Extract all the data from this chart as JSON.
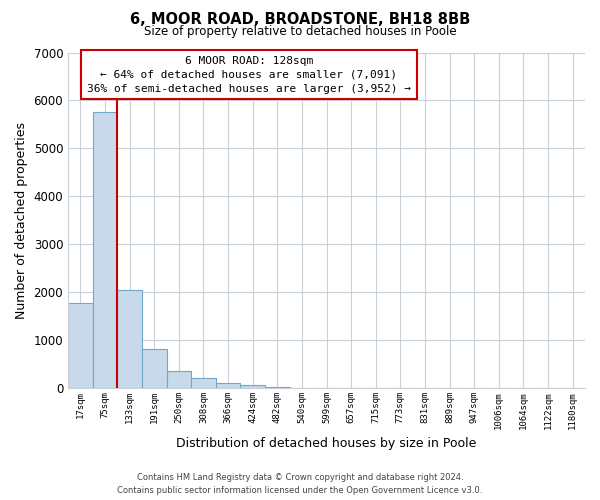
{
  "title_line1": "6, MOOR ROAD, BROADSTONE, BH18 8BB",
  "title_line2": "Size of property relative to detached houses in Poole",
  "xlabel": "Distribution of detached houses by size in Poole",
  "ylabel": "Number of detached properties",
  "bar_labels": [
    "17sqm",
    "75sqm",
    "133sqm",
    "191sqm",
    "250sqm",
    "308sqm",
    "366sqm",
    "424sqm",
    "482sqm",
    "540sqm",
    "599sqm",
    "657sqm",
    "715sqm",
    "773sqm",
    "831sqm",
    "889sqm",
    "947sqm",
    "1006sqm",
    "1064sqm",
    "1122sqm",
    "1180sqm"
  ],
  "bar_values": [
    1780,
    5750,
    2050,
    820,
    370,
    220,
    105,
    60,
    25,
    10,
    5,
    0,
    0,
    0,
    0,
    0,
    0,
    0,
    0,
    0,
    0
  ],
  "bar_color": "#c8d9ea",
  "bar_edge_color": "#6fa8cc",
  "vline_color": "#cc0000",
  "vline_position": 1.5,
  "ylim": [
    0,
    7000
  ],
  "yticks": [
    0,
    1000,
    2000,
    3000,
    4000,
    5000,
    6000,
    7000
  ],
  "annotation_title": "6 MOOR ROAD: 128sqm",
  "annotation_line1": "← 64% of detached houses are smaller (7,091)",
  "annotation_line2": "36% of semi-detached houses are larger (3,952) →",
  "annotation_box_color": "#ffffff",
  "annotation_box_edgecolor": "#cc0000",
  "footer_line1": "Contains HM Land Registry data © Crown copyright and database right 2024.",
  "footer_line2": "Contains public sector information licensed under the Open Government Licence v3.0.",
  "background_color": "#ffffff",
  "grid_color": "#c8d0da"
}
